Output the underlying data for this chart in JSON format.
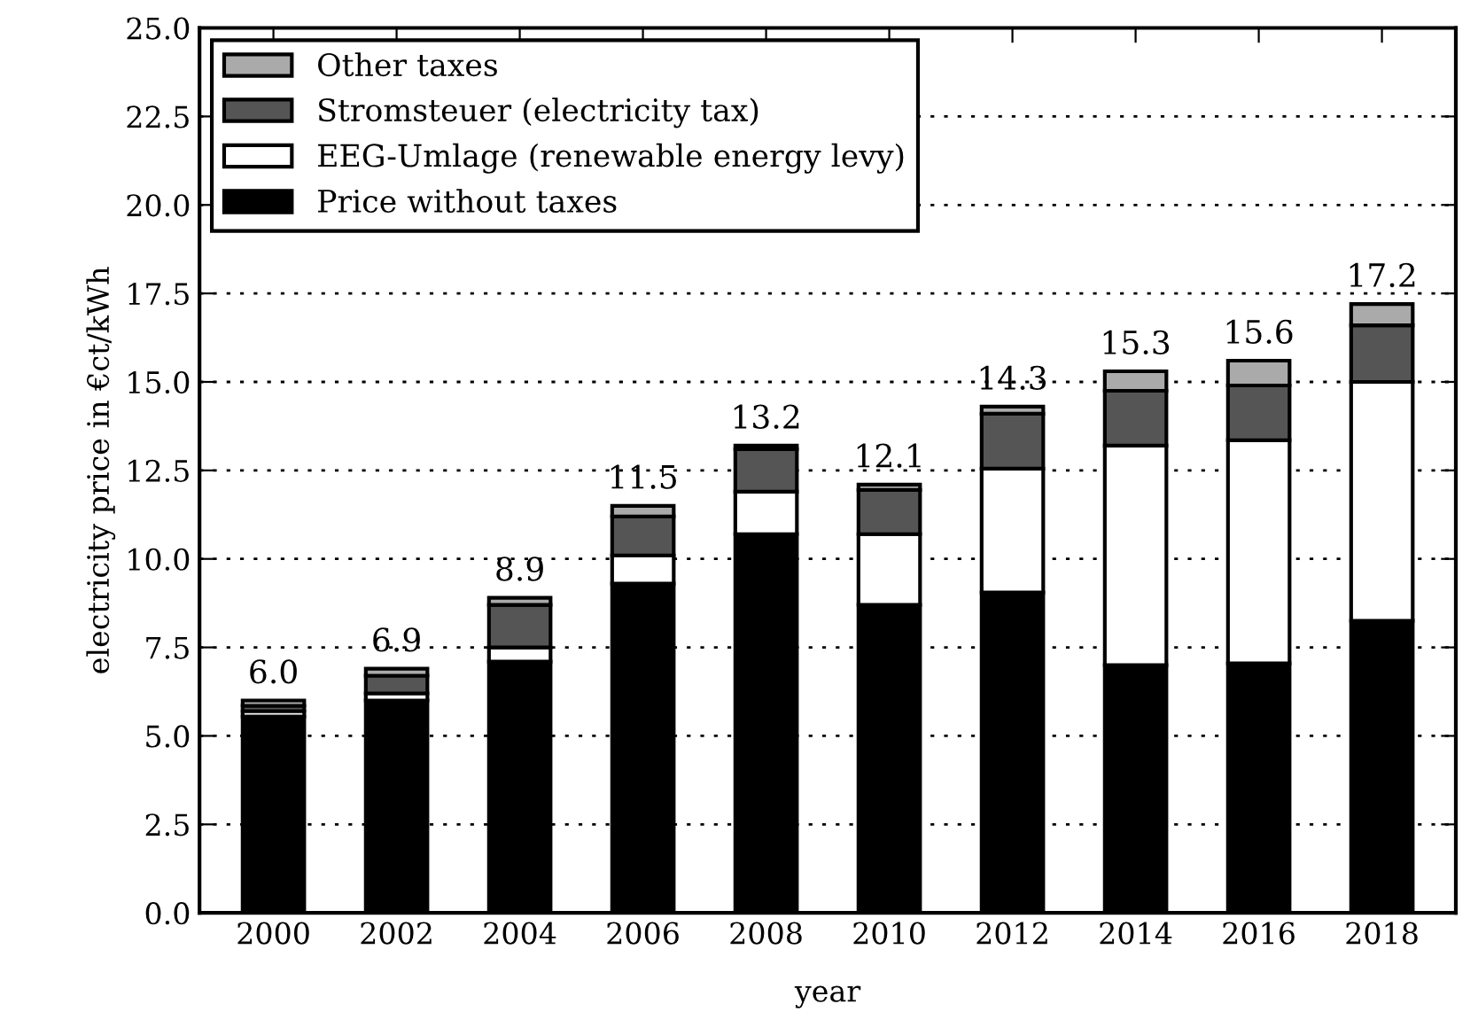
{
  "chart_data": {
    "type": "bar",
    "stacked": true,
    "xlabel": "year",
    "ylabel": "electricity price in €ct/kWh",
    "categories": [
      "2000",
      "2002",
      "2004",
      "2006",
      "2008",
      "2010",
      "2012",
      "2014",
      "2016",
      "2018"
    ],
    "series": [
      {
        "name": "Price without taxes",
        "color": "#000000",
        "values": [
          5.55,
          6.0,
          7.1,
          9.3,
          10.7,
          8.7,
          9.05,
          7.0,
          7.05,
          8.25
        ]
      },
      {
        "name": "EEG-Umlage (renewable energy levy)",
        "color": "#ffffff",
        "values": [
          0.15,
          0.2,
          0.4,
          0.8,
          1.2,
          2.0,
          3.5,
          6.2,
          6.3,
          6.75
        ]
      },
      {
        "name": "Stromsteuer (electricity tax)",
        "color": "#555555",
        "values": [
          0.15,
          0.5,
          1.2,
          1.1,
          1.2,
          1.25,
          1.55,
          1.55,
          1.55,
          1.6
        ]
      },
      {
        "name": "Other taxes",
        "color": "#aaaaaa",
        "values": [
          0.15,
          0.2,
          0.2,
          0.3,
          0.1,
          0.15,
          0.2,
          0.55,
          0.7,
          0.6
        ]
      }
    ],
    "totals": [
      "6.0",
      "6.9",
      "8.9",
      "11.5",
      "13.2",
      "12.1",
      "14.3",
      "15.3",
      "15.6",
      "17.2"
    ],
    "ylim": [
      0,
      25
    ],
    "yticks": [
      {
        "value": 0,
        "label": "0.0"
      },
      {
        "value": 2.5,
        "label": "2.5"
      },
      {
        "value": 5,
        "label": "5.0"
      },
      {
        "value": 7.5,
        "label": "7.5"
      },
      {
        "value": 10,
        "label": "10.0"
      },
      {
        "value": 12.5,
        "label": "12.5"
      },
      {
        "value": 15,
        "label": "15.0"
      },
      {
        "value": 17.5,
        "label": "17.5"
      },
      {
        "value": 20,
        "label": "20.0"
      },
      {
        "value": 22.5,
        "label": "22.5"
      },
      {
        "value": 25,
        "label": "25.0"
      }
    ],
    "grid": "y",
    "legend": "top left"
  }
}
